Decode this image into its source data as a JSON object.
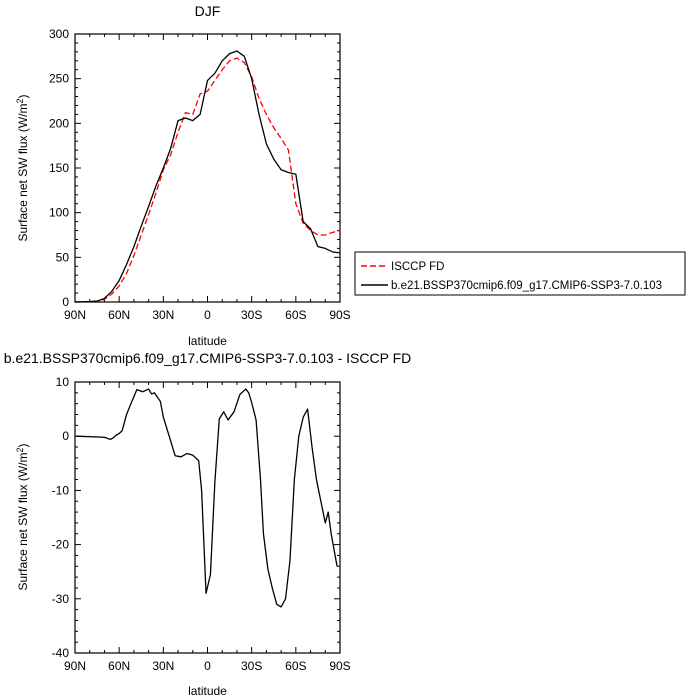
{
  "chart_data": [
    {
      "type": "line",
      "title": "DJF",
      "xlabel": "latitude",
      "ylabel": "Surface net SW flux (W/m",
      "ylabel_sup": "2",
      "ylabel_tail": ")",
      "xlim": [
        90,
        -90
      ],
      "ylim": [
        0,
        300
      ],
      "x_ticks": [
        90,
        60,
        30,
        0,
        -30,
        -60,
        -90
      ],
      "x_tick_labels": [
        "90N",
        "60N",
        "30N",
        "0",
        "30S",
        "60S",
        "90S"
      ],
      "y_ticks": [
        0,
        50,
        100,
        150,
        200,
        250,
        300
      ],
      "y_tick_labels": [
        "0",
        "50",
        "100",
        "150",
        "200",
        "250",
        "300"
      ],
      "legend_position": "right",
      "series": [
        {
          "name": "ISCCP FD",
          "color": "#ff0000",
          "dash": "dashed",
          "x": [
            90,
            80,
            75,
            70,
            65,
            60,
            55,
            50,
            45,
            40,
            35,
            30,
            25,
            20,
            15,
            10,
            5,
            0,
            -5,
            -10,
            -15,
            -20,
            -25,
            -30,
            -35,
            -40,
            -45,
            -50,
            -55,
            -60,
            -65,
            -70,
            -75,
            -80,
            -85,
            -90
          ],
          "y": [
            0,
            0.5,
            1,
            3,
            9,
            18,
            32,
            52,
            75,
            98,
            122,
            148,
            165,
            190,
            212,
            210,
            233,
            236,
            248,
            260,
            270,
            273,
            268,
            252,
            228,
            210,
            195,
            183,
            170,
            110,
            88,
            80,
            75,
            75,
            78,
            80
          ]
        },
        {
          "name": "b.e21.BSSP370cmip6.f09_g17.CMIP6-SSP3-7.0.103",
          "color": "#000000",
          "dash": "solid",
          "x": [
            90,
            80,
            75,
            70,
            65,
            60,
            55,
            50,
            45,
            40,
            35,
            30,
            25,
            20,
            15,
            10,
            5,
            0,
            -5,
            -10,
            -15,
            -20,
            -25,
            -30,
            -35,
            -40,
            -45,
            -50,
            -55,
            -60,
            -65,
            -70,
            -75,
            -80,
            -85,
            -90
          ],
          "y": [
            0,
            0.5,
            1,
            4,
            12,
            24,
            42,
            62,
            85,
            107,
            130,
            150,
            172,
            203,
            206,
            203,
            210,
            248,
            256,
            270,
            278,
            281,
            275,
            250,
            210,
            177,
            160,
            148,
            145,
            143,
            90,
            82,
            62,
            60,
            56,
            55
          ]
        }
      ]
    },
    {
      "type": "line",
      "title": "b.e21.BSSP370cmip6.f09_g17.CMIP6-SSP3-7.0.103 - ISCCP FD",
      "xlabel": "latitude",
      "ylabel": "Surface net SW flux (W/m",
      "ylabel_sup": "2",
      "ylabel_tail": ")",
      "xlim": [
        90,
        -90
      ],
      "ylim": [
        -40,
        10
      ],
      "x_ticks": [
        90,
        60,
        30,
        0,
        -30,
        -60,
        -90
      ],
      "x_tick_labels": [
        "90N",
        "60N",
        "30N",
        "0",
        "30S",
        "60S",
        "90S"
      ],
      "y_ticks": [
        -40,
        -30,
        -20,
        -10,
        0,
        10
      ],
      "y_tick_labels": [
        "-40",
        "-30",
        "-20",
        "-10",
        "0",
        "10"
      ],
      "series": [
        {
          "color": "#000000",
          "x": [
            89,
            70,
            66,
            64,
            62,
            60,
            58,
            55,
            52,
            48,
            44,
            40,
            38,
            36,
            32,
            30,
            26,
            22,
            18,
            14,
            10,
            6,
            4,
            1,
            -2,
            -5,
            -8,
            -11,
            -14,
            -18,
            -22,
            -26,
            -28,
            -30,
            -33,
            -36,
            -38,
            -41,
            -44,
            -47,
            -50,
            -53,
            -56,
            -59,
            -62,
            -65,
            -68,
            -71,
            -74,
            -77,
            -80,
            -82,
            -84,
            -86,
            -88
          ],
          "y": [
            0,
            -0.2,
            -0.6,
            -0.3,
            0.2,
            0.5,
            1,
            4,
            6,
            8.6,
            8.2,
            8.7,
            7.8,
            8,
            6.4,
            3.5,
            0,
            -3.6,
            -3.8,
            -3.2,
            -3.5,
            -4.5,
            -10,
            -29,
            -25.5,
            -8.5,
            3.2,
            4.5,
            3,
            4.5,
            7.7,
            8.7,
            8,
            6.2,
            3,
            -8,
            -18,
            -24.5,
            -28,
            -31,
            -31.5,
            -30,
            -23,
            -8,
            0,
            3.5,
            5,
            -2,
            -8,
            -12,
            -16,
            -14,
            -18,
            -21,
            -24
          ]
        }
      ]
    }
  ]
}
